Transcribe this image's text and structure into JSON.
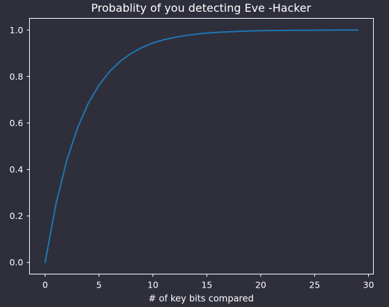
{
  "chart_data": {
    "type": "line",
    "title": "Probablity of you detecting Eve -Hacker",
    "xlabel": "# of key bits compared",
    "ylabel": "",
    "xlim": [
      -1.45,
      30.45
    ],
    "ylim": [
      -0.05,
      1.05
    ],
    "xticks": [
      0,
      5,
      10,
      15,
      20,
      25,
      30
    ],
    "yticks": [
      0.0,
      0.2,
      0.4,
      0.6,
      0.8,
      1.0
    ],
    "ytick_labels": [
      "0.0",
      "0.2",
      "0.4",
      "0.6",
      "0.8",
      "1.0"
    ],
    "grid": false,
    "series": [
      {
        "color": "#1f77b4",
        "x": [
          0,
          1,
          2,
          3,
          4,
          5,
          6,
          7,
          8,
          9,
          10,
          11,
          12,
          13,
          14,
          15,
          16,
          17,
          18,
          19,
          20,
          21,
          22,
          23,
          24,
          25,
          26,
          27,
          28,
          29
        ],
        "y": [
          0.0,
          0.25,
          0.4375,
          0.578,
          0.684,
          0.763,
          0.822,
          0.867,
          0.9,
          0.925,
          0.944,
          0.958,
          0.968,
          0.976,
          0.982,
          0.987,
          0.99,
          0.992,
          0.994,
          0.996,
          0.997,
          0.998,
          0.998,
          0.999,
          0.999,
          0.999,
          0.9994,
          0.9996,
          0.9997,
          0.9998
        ]
      }
    ]
  }
}
